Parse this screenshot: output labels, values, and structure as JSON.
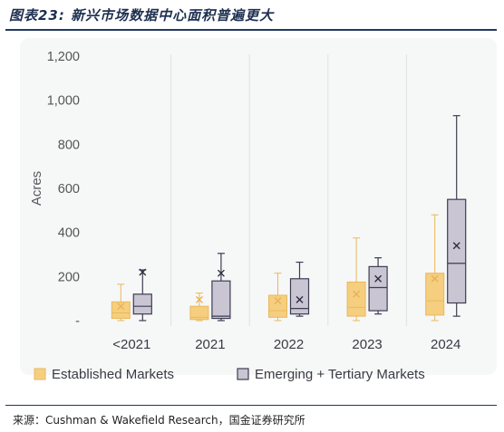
{
  "header": {
    "title": "图表23: 新兴市场数据中心面积普遍更大"
  },
  "footer": {
    "source": "来源：Cushman & Wakefield Research，国金证券研究所"
  },
  "chart_data": {
    "type": "box",
    "ylabel": "Acres",
    "ylim": [
      0,
      1200
    ],
    "yticks": [
      {
        "value": 0,
        "label": "-"
      },
      {
        "value": 200,
        "label": "200"
      },
      {
        "value": 400,
        "label": "400"
      },
      {
        "value": 600,
        "label": "600"
      },
      {
        "value": 800,
        "label": "800"
      },
      {
        "value": 1000,
        "label": "1,000"
      },
      {
        "value": 1200,
        "label": "1,200"
      }
    ],
    "categories": [
      "<2021",
      "2021",
      "2022",
      "2023",
      "2024"
    ],
    "grid": "vertical separators",
    "legend_position": "bottom",
    "series": [
      {
        "name": "Established Markets",
        "color": "#f5cf7f",
        "stroke": "#eab85c",
        "boxes": [
          {
            "min": 0,
            "q1": 10,
            "median": 35,
            "q3": 85,
            "max": 165,
            "mean": 65
          },
          {
            "min": 0,
            "q1": 5,
            "median": 15,
            "q3": 65,
            "max": 125,
            "mean": 95
          },
          {
            "min": 0,
            "q1": 15,
            "median": 45,
            "q3": 115,
            "max": 215,
            "mean": 90
          },
          {
            "min": 0,
            "q1": 20,
            "median": 60,
            "q3": 175,
            "max": 375,
            "mean": 120
          },
          {
            "min": 0,
            "q1": 25,
            "median": 90,
            "q3": 215,
            "max": 480,
            "mean": 190
          }
        ]
      },
      {
        "name": "Emerging + Tertiary Markets",
        "color": "#c9c5d3",
        "stroke": "#3e3d52",
        "boxes": [
          {
            "min": 0,
            "q1": 30,
            "median": 65,
            "q3": 120,
            "max": 230,
            "mean": 220
          },
          {
            "min": 0,
            "q1": 10,
            "median": 20,
            "q3": 180,
            "max": 305,
            "mean": 215
          },
          {
            "min": 20,
            "q1": 30,
            "median": 55,
            "q3": 190,
            "max": 265,
            "mean": 95
          },
          {
            "min": 30,
            "q1": 45,
            "median": 150,
            "q3": 245,
            "max": 285,
            "mean": 190
          },
          {
            "min": 20,
            "q1": 80,
            "median": 260,
            "q3": 550,
            "max": 930,
            "mean": 340
          }
        ]
      }
    ]
  }
}
